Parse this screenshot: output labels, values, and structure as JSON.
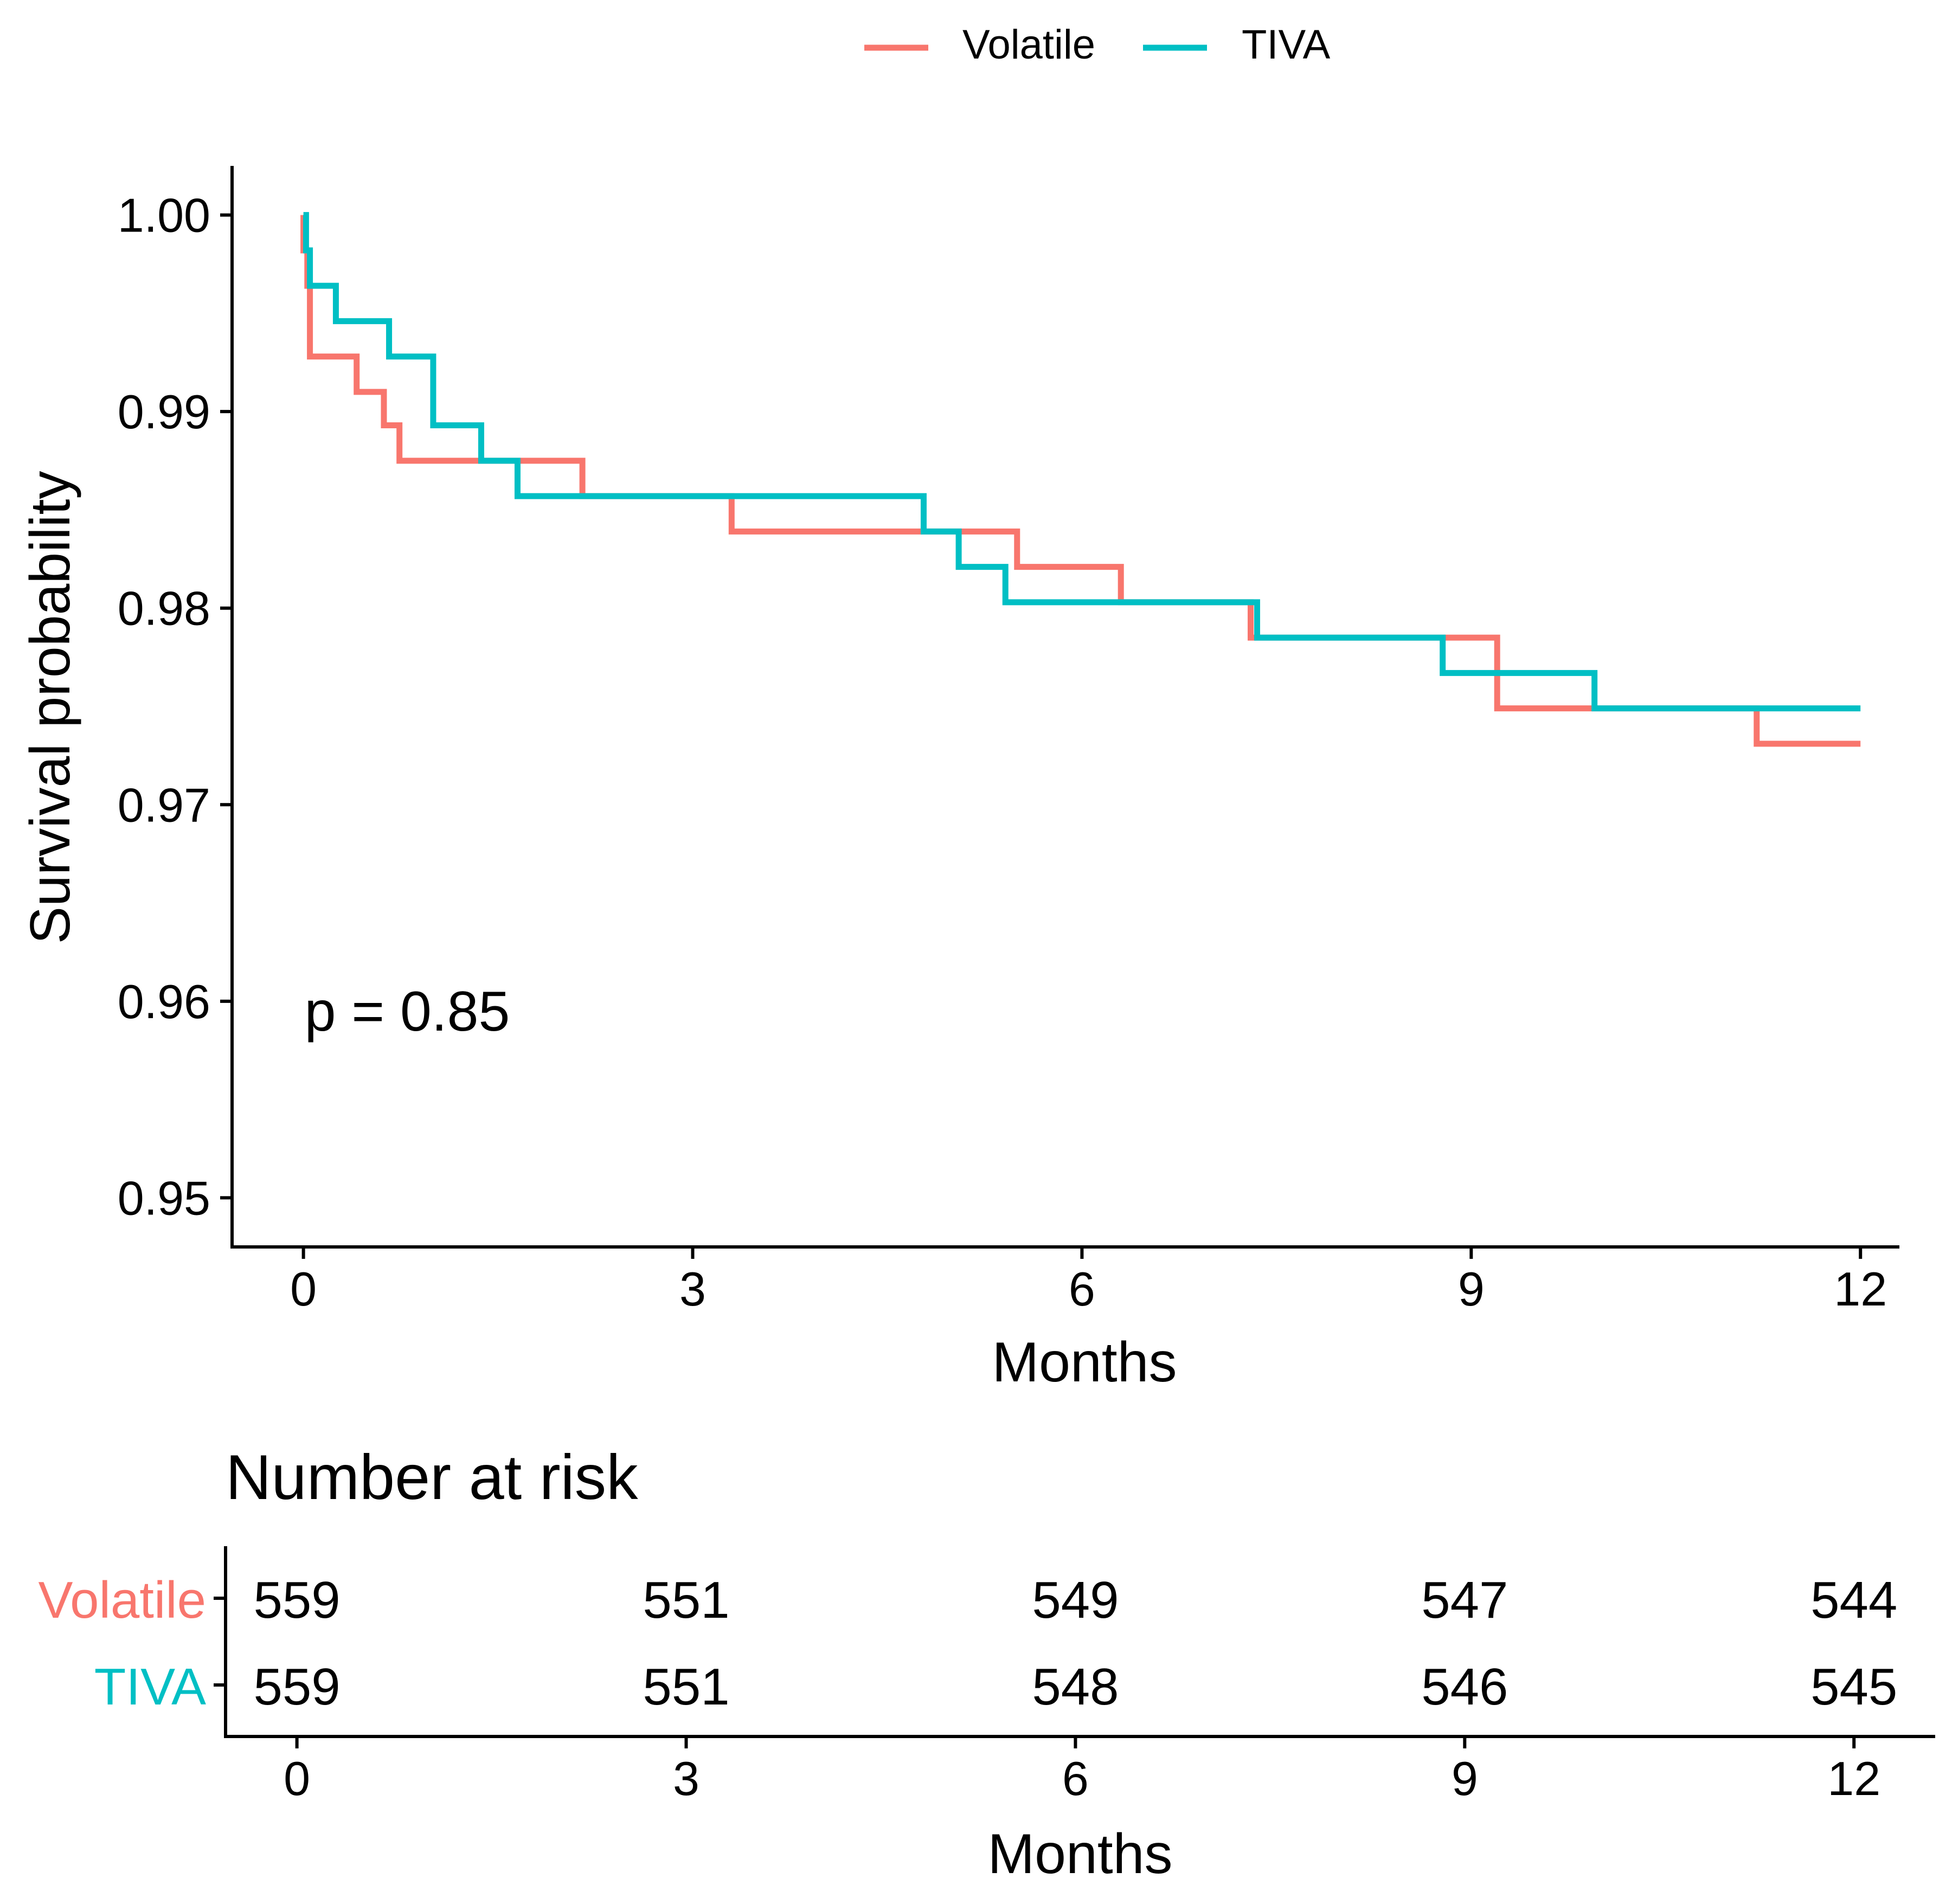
{
  "colors": {
    "volatile": "#F8766D",
    "tiva": "#00BFC4",
    "axis": "#000000",
    "background": "#FFFFFF"
  },
  "legend": {
    "position": "top",
    "items": [
      {
        "label": "Volatile",
        "color": "#F8766D"
      },
      {
        "label": "TIVA",
        "color": "#00BFC4"
      }
    ]
  },
  "chart_data": [
    {
      "type": "line",
      "subtype": "kaplan-meier step",
      "xlabel": "Months",
      "ylabel": "Survival probability",
      "xlim": [
        -0.55,
        12.3
      ],
      "ylim": [
        0.9475,
        1.0025
      ],
      "xticks": [
        0,
        3,
        6,
        9,
        12
      ],
      "yticks": [
        0.95,
        0.96,
        0.97,
        0.98,
        0.99,
        1.0
      ],
      "ytick_labels": [
        "0.95",
        "0.96",
        "0.97",
        "0.98",
        "0.99",
        "1.00"
      ],
      "grid": false,
      "annotation": {
        "text": "p = 0.85",
        "x": 0.05,
        "y": 0.9595
      },
      "series": [
        {
          "name": "Volatile",
          "color": "#F8766D",
          "steps": [
            [
              0.0,
              1.0
            ],
            [
              0.0,
              0.9982
            ],
            [
              0.03,
              0.9964
            ],
            [
              0.05,
              0.9928
            ],
            [
              0.41,
              0.991
            ],
            [
              0.62,
              0.9893
            ],
            [
              0.74,
              0.9875
            ],
            [
              2.15,
              0.9857
            ],
            [
              3.3,
              0.9839
            ],
            [
              5.5,
              0.9821
            ],
            [
              6.3,
              0.9803
            ],
            [
              7.3,
              0.9785
            ],
            [
              9.2,
              0.9749
            ],
            [
              11.2,
              0.9731
            ],
            [
              12.0,
              0.9731
            ]
          ]
        },
        {
          "name": "TIVA",
          "color": "#00BFC4",
          "steps": [
            [
              0.0,
              1.0
            ],
            [
              0.02,
              0.9982
            ],
            [
              0.05,
              0.9964
            ],
            [
              0.25,
              0.9946
            ],
            [
              0.66,
              0.9928
            ],
            [
              1.0,
              0.9893
            ],
            [
              1.37,
              0.9875
            ],
            [
              1.65,
              0.9857
            ],
            [
              4.78,
              0.9839
            ],
            [
              5.05,
              0.9821
            ],
            [
              5.41,
              0.9803
            ],
            [
              7.35,
              0.9785
            ],
            [
              8.78,
              0.9767
            ],
            [
              9.95,
              0.9749
            ],
            [
              12.0,
              0.9749
            ]
          ]
        }
      ]
    },
    {
      "type": "table",
      "title": "Number at risk",
      "xlabel": "Months",
      "xlim": [
        -0.55,
        12.3
      ],
      "xticks": [
        0,
        3,
        6,
        9,
        12
      ],
      "time_points": [
        0,
        3,
        6,
        9,
        12
      ],
      "rows": [
        {
          "label": "Volatile",
          "color": "#F8766D",
          "values": [
            559,
            551,
            549,
            547,
            544
          ]
        },
        {
          "label": "TIVA",
          "color": "#00BFC4",
          "values": [
            559,
            551,
            548,
            546,
            545
          ]
        }
      ]
    }
  ]
}
